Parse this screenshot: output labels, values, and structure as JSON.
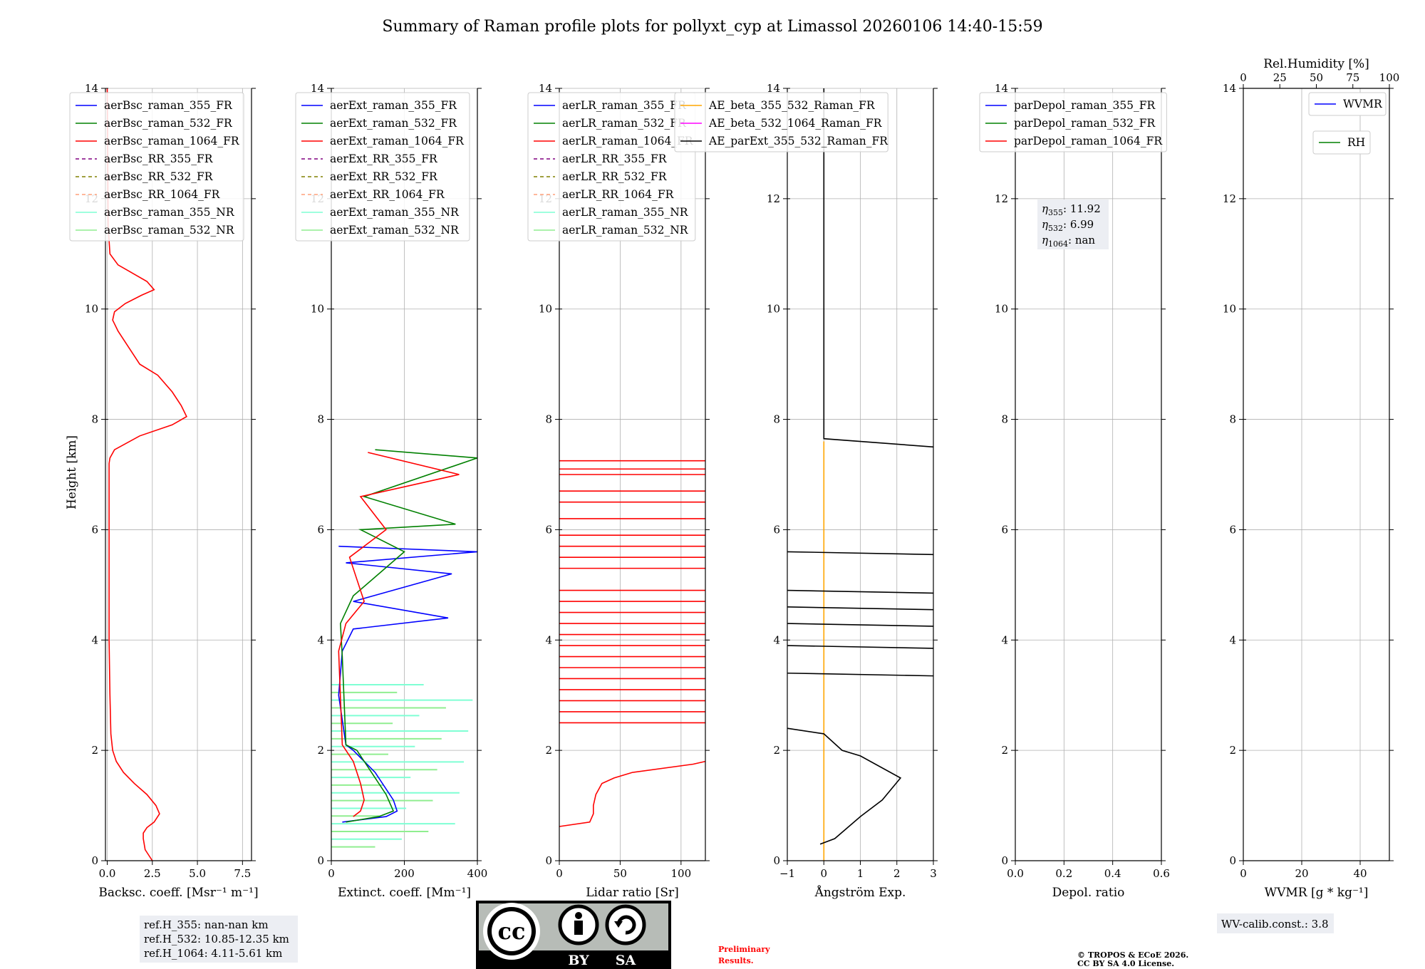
{
  "title": "Summary of Raman profile plots for pollyxt_cyp at Limassol 20260106 14:40-15:59",
  "ylabel": "Height [km]",
  "height_ticks": [
    "0",
    "2",
    "4",
    "6",
    "8",
    "10",
    "12",
    "14"
  ],
  "height_range_km": [
    0,
    14
  ],
  "panels": [
    {
      "id": "bsc",
      "xlabel": "Backsc. coeff. [Msr⁻¹ m⁻¹]",
      "xticks": [
        "0.0",
        "2.5",
        "5.0",
        "7.5"
      ],
      "xlim": [
        -0.1,
        8
      ],
      "legend": [
        "aerBsc_raman_355_FR",
        "aerBsc_raman_532_FR",
        "aerBsc_raman_1064_FR",
        "aerBsc_RR_355_FR",
        "aerBsc_RR_532_FR",
        "aerBsc_RR_1064_FR",
        "aerBsc_raman_355_NR",
        "aerBsc_raman_532_NR"
      ]
    },
    {
      "id": "ext",
      "xlabel": "Extinct. coeff. [Mm⁻¹]",
      "xticks": [
        "0",
        "200",
        "400"
      ],
      "xlim": [
        0,
        400
      ],
      "legend": [
        "aerExt_raman_355_FR",
        "aerExt_raman_532_FR",
        "aerExt_raman_1064_FR",
        "aerExt_RR_355_FR",
        "aerExt_RR_532_FR",
        "aerExt_RR_1064_FR",
        "aerExt_raman_355_NR",
        "aerExt_raman_532_NR"
      ]
    },
    {
      "id": "lr",
      "xlabel": "Lidar ratio [Sr]",
      "xticks": [
        "0",
        "50",
        "100"
      ],
      "xlim": [
        0,
        120
      ],
      "legend": [
        "aerLR_raman_355_FR",
        "aerLR_raman_532_FR",
        "aerLR_raman_1064_FR",
        "aerLR_RR_355_FR",
        "aerLR_RR_532_FR",
        "aerLR_RR_1064_FR",
        "aerLR_raman_355_NR",
        "aerLR_raman_532_NR"
      ]
    },
    {
      "id": "ae",
      "xlabel": "Ångström Exp.",
      "xticks": [
        "−1",
        "0",
        "1",
        "2",
        "3"
      ],
      "xlim": [
        -1,
        3
      ],
      "legend": [
        "AE_beta_355_532_Raman_FR",
        "AE_beta_532_1064_Raman_FR",
        "AE_parExt_355_532_Raman_FR"
      ]
    },
    {
      "id": "depol",
      "xlabel": "Depol. ratio",
      "xticks": [
        "0.0",
        "0.2",
        "0.4",
        "0.6"
      ],
      "xlim": [
        0,
        0.6
      ],
      "legend": [
        "parDepol_raman_355_FR",
        "parDepol_raman_532_FR",
        "parDepol_raman_1064_FR"
      ]
    },
    {
      "id": "wv",
      "xlabel": "WVMR [g * kg⁻¹]",
      "xticks": [
        "0",
        "20",
        "40"
      ],
      "xlim": [
        0,
        50
      ],
      "legend": [
        "WVMR",
        "RH"
      ],
      "top_label": "Rel.Humidity [%]",
      "top_ticks": [
        "0",
        "25",
        "50",
        "75",
        "100"
      ]
    }
  ],
  "eta": {
    "eta355": "11.92",
    "eta532": "6.99",
    "eta1064": "nan"
  },
  "ref_heights": {
    "h355": "ref.H_355: nan-nan km",
    "h532": "ref.H_532: 10.85-12.35 km",
    "h1064": "ref.H_1064: 4.11-5.61 km"
  },
  "wv_calib": "WV-calib.const.: 3.8",
  "license_badge": {
    "cc": "cc",
    "by": "BY",
    "sa": "SA"
  },
  "preliminary": {
    "line1": "Preliminary",
    "line2": "Results."
  },
  "copyright": {
    "line1": "© TROPOS & ECoE 2026.",
    "line2": "CC BY SA 4.0 License."
  },
  "colors": {
    "c355": "#0000ff",
    "c532": "#008000",
    "c1064": "#ff0000",
    "rr355": "#800080",
    "rr532": "#808000",
    "rr1064": "#ffa07a",
    "nr355": "#7fffd4",
    "nr532": "#90ee90",
    "ae_beta_355_532": "#ffa500",
    "ae_beta_532_1064": "#ff00ff",
    "ae_parext": "#000000",
    "preliminary": "#ff0000"
  },
  "chart_data": {
    "type": "line",
    "bsc_1064_FR": {
      "x": [
        2.5,
        2.1,
        2.0,
        2.0,
        2.2,
        2.6,
        2.9,
        2.7,
        2.2,
        1.5,
        0.9,
        0.5,
        0.3,
        0.2,
        0.15,
        0.1,
        0.1,
        0.1,
        0.1,
        0.1,
        0.1,
        0.15,
        0.4,
        1.8,
        3.6,
        4.4,
        4.1,
        3.6,
        2.8,
        1.8,
        1.2,
        0.6,
        0.3,
        0.4,
        1.0,
        1.9,
        2.6,
        2.2,
        1.4,
        0.6,
        0.15,
        0.05,
        0.0
      ],
      "h": [
        0.0,
        0.2,
        0.4,
        0.5,
        0.6,
        0.7,
        0.85,
        1.0,
        1.2,
        1.4,
        1.6,
        1.8,
        2.0,
        2.3,
        3.0,
        4.0,
        5.0,
        6.0,
        6.8,
        7.0,
        7.2,
        7.3,
        7.45,
        7.7,
        7.9,
        8.05,
        8.25,
        8.5,
        8.8,
        9.0,
        9.3,
        9.6,
        9.8,
        9.95,
        10.1,
        10.25,
        10.35,
        10.5,
        10.65,
        10.8,
        11.0,
        11.5,
        14.0
      ]
    },
    "ext_532_FR": {
      "x": [
        40,
        130,
        170,
        150,
        110,
        70,
        40,
        30,
        25,
        60,
        200,
        80,
        340,
        90,
        400,
        120
      ],
      "h": [
        0.7,
        0.8,
        0.9,
        1.2,
        1.6,
        2.0,
        2.1,
        3.7,
        4.3,
        4.8,
        5.6,
        6.0,
        6.1,
        6.6,
        7.3,
        7.45
      ]
    },
    "ext_355_FR": {
      "x": [
        30,
        150,
        180,
        170,
        120,
        60,
        40,
        20,
        30,
        60,
        320,
        60,
        330,
        40,
        400,
        20
      ],
      "h": [
        0.7,
        0.8,
        0.9,
        1.1,
        1.6,
        2.0,
        2.1,
        3.0,
        3.8,
        4.2,
        4.4,
        4.7,
        5.2,
        5.4,
        5.6,
        5.7
      ]
    },
    "ext_1064_FR": {
      "x": [
        60,
        80,
        90,
        80,
        60,
        40,
        30,
        20,
        40,
        90,
        50,
        150,
        80,
        350,
        100
      ],
      "h": [
        0.8,
        0.9,
        1.1,
        1.4,
        1.8,
        2.0,
        2.1,
        3.8,
        4.3,
        4.7,
        5.5,
        6.0,
        6.6,
        7.0,
        7.4
      ]
    },
    "lr_1064_FR": {
      "x": [
        0,
        25,
        28,
        28,
        30,
        35,
        45,
        60,
        110,
        120
      ],
      "h": [
        0.62,
        0.7,
        0.85,
        1.0,
        1.2,
        1.4,
        1.5,
        1.6,
        1.75,
        1.8
      ]
    },
    "lr_1064_FR_spikes_km": [
      2.5,
      2.7,
      2.9,
      3.1,
      3.3,
      3.5,
      3.7,
      3.9,
      4.1,
      4.3,
      4.5,
      4.7,
      4.9,
      5.3,
      5.5,
      5.7,
      5.9,
      6.2,
      6.5,
      6.7,
      7.0,
      7.1,
      7.25
    ],
    "ae_parExt_355_532": {
      "x": [
        -0.1,
        0.3,
        1.0,
        1.6,
        2.1,
        1.0,
        0.5,
        0.0,
        -1.0
      ],
      "h": [
        0.3,
        0.4,
        0.8,
        1.1,
        1.5,
        1.9,
        2.0,
        2.3,
        2.4
      ]
    },
    "ae_beta_355_532": {
      "x": [
        0,
        0
      ],
      "h": [
        0,
        7.6
      ]
    },
    "ae_parExt_upper": {
      "x": [
        0,
        0,
        3.0
      ],
      "h": [
        14.0,
        7.65,
        7.5
      ]
    }
  }
}
